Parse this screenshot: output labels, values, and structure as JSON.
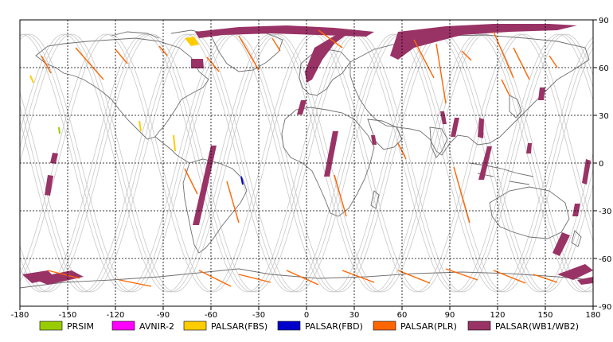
{
  "map": {
    "x_ticks": [
      "-180",
      "-150",
      "-120",
      "-90",
      "-60",
      "-30",
      "0",
      "30",
      "60",
      "90",
      "120",
      "150",
      "180"
    ],
    "y_ticks": [
      "90",
      "60",
      "30",
      "0",
      "-30",
      "-60",
      "-90"
    ],
    "colors": {
      "frame": "#000000",
      "grid": "#000000",
      "coast": "#6f6f6f",
      "orbit": "#c8c8c8"
    }
  },
  "legend": [
    {
      "label": "PRSIM",
      "color": "#99cc00"
    },
    {
      "label": "AVNIR-2",
      "color": "#ff00ff"
    },
    {
      "label": "PALSAR(FBS)",
      "color": "#ffcc00"
    },
    {
      "label": "PALSAR(FBD)",
      "color": "#0000cc"
    },
    {
      "label": "PALSAR(PLR)",
      "color": "#ff6600"
    },
    {
      "label": "PALSAR(WB1/WB2)",
      "color": "#993366"
    }
  ]
}
